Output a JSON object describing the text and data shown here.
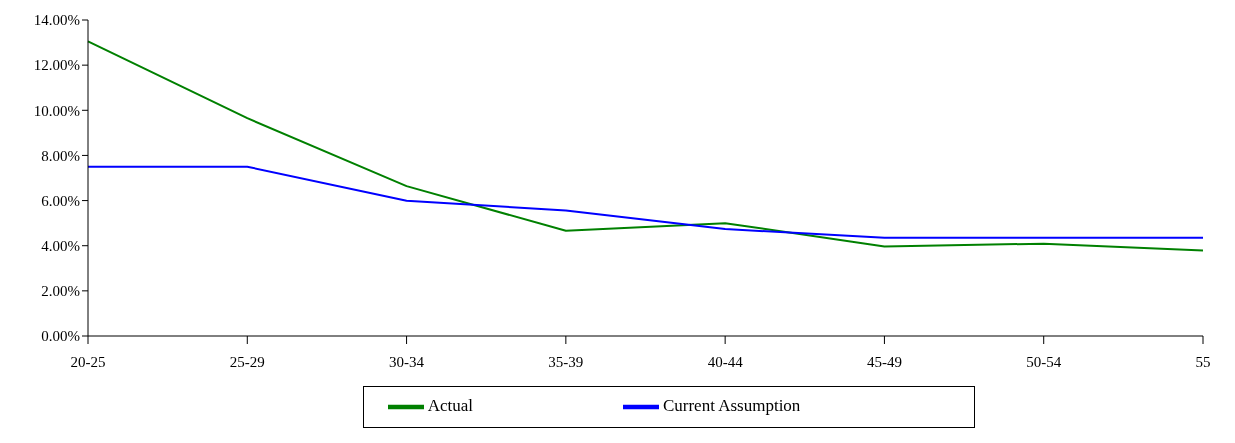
{
  "chart_data": {
    "type": "line",
    "categories": [
      "20-25",
      "25-29",
      "30-34",
      "35-39",
      "40-44",
      "45-49",
      "50-54",
      "55"
    ],
    "series": [
      {
        "name": "Actual",
        "color": "#008000",
        "values": [
          13.05,
          9.65,
          6.64,
          4.66,
          5.0,
          3.97,
          4.09,
          3.79
        ]
      },
      {
        "name": "Current Assumption",
        "color": "#0000ff",
        "values": [
          7.5,
          7.5,
          5.99,
          5.56,
          4.74,
          4.35,
          4.35,
          4.35
        ]
      }
    ],
    "ylim": [
      0,
      14
    ],
    "yticks": [
      {
        "value": 0,
        "label": "0.00%"
      },
      {
        "value": 2,
        "label": "2.00%"
      },
      {
        "value": 4,
        "label": "4.00%"
      },
      {
        "value": 6,
        "label": "6.00%"
      },
      {
        "value": 8,
        "label": "8.00%"
      },
      {
        "value": 10,
        "label": "10.00%"
      },
      {
        "value": 12,
        "label": "12.00%"
      },
      {
        "value": 14,
        "label": "14.00%"
      }
    ],
    "grid": false,
    "legend": "bottom",
    "marker": "none",
    "line_style": "solid"
  }
}
